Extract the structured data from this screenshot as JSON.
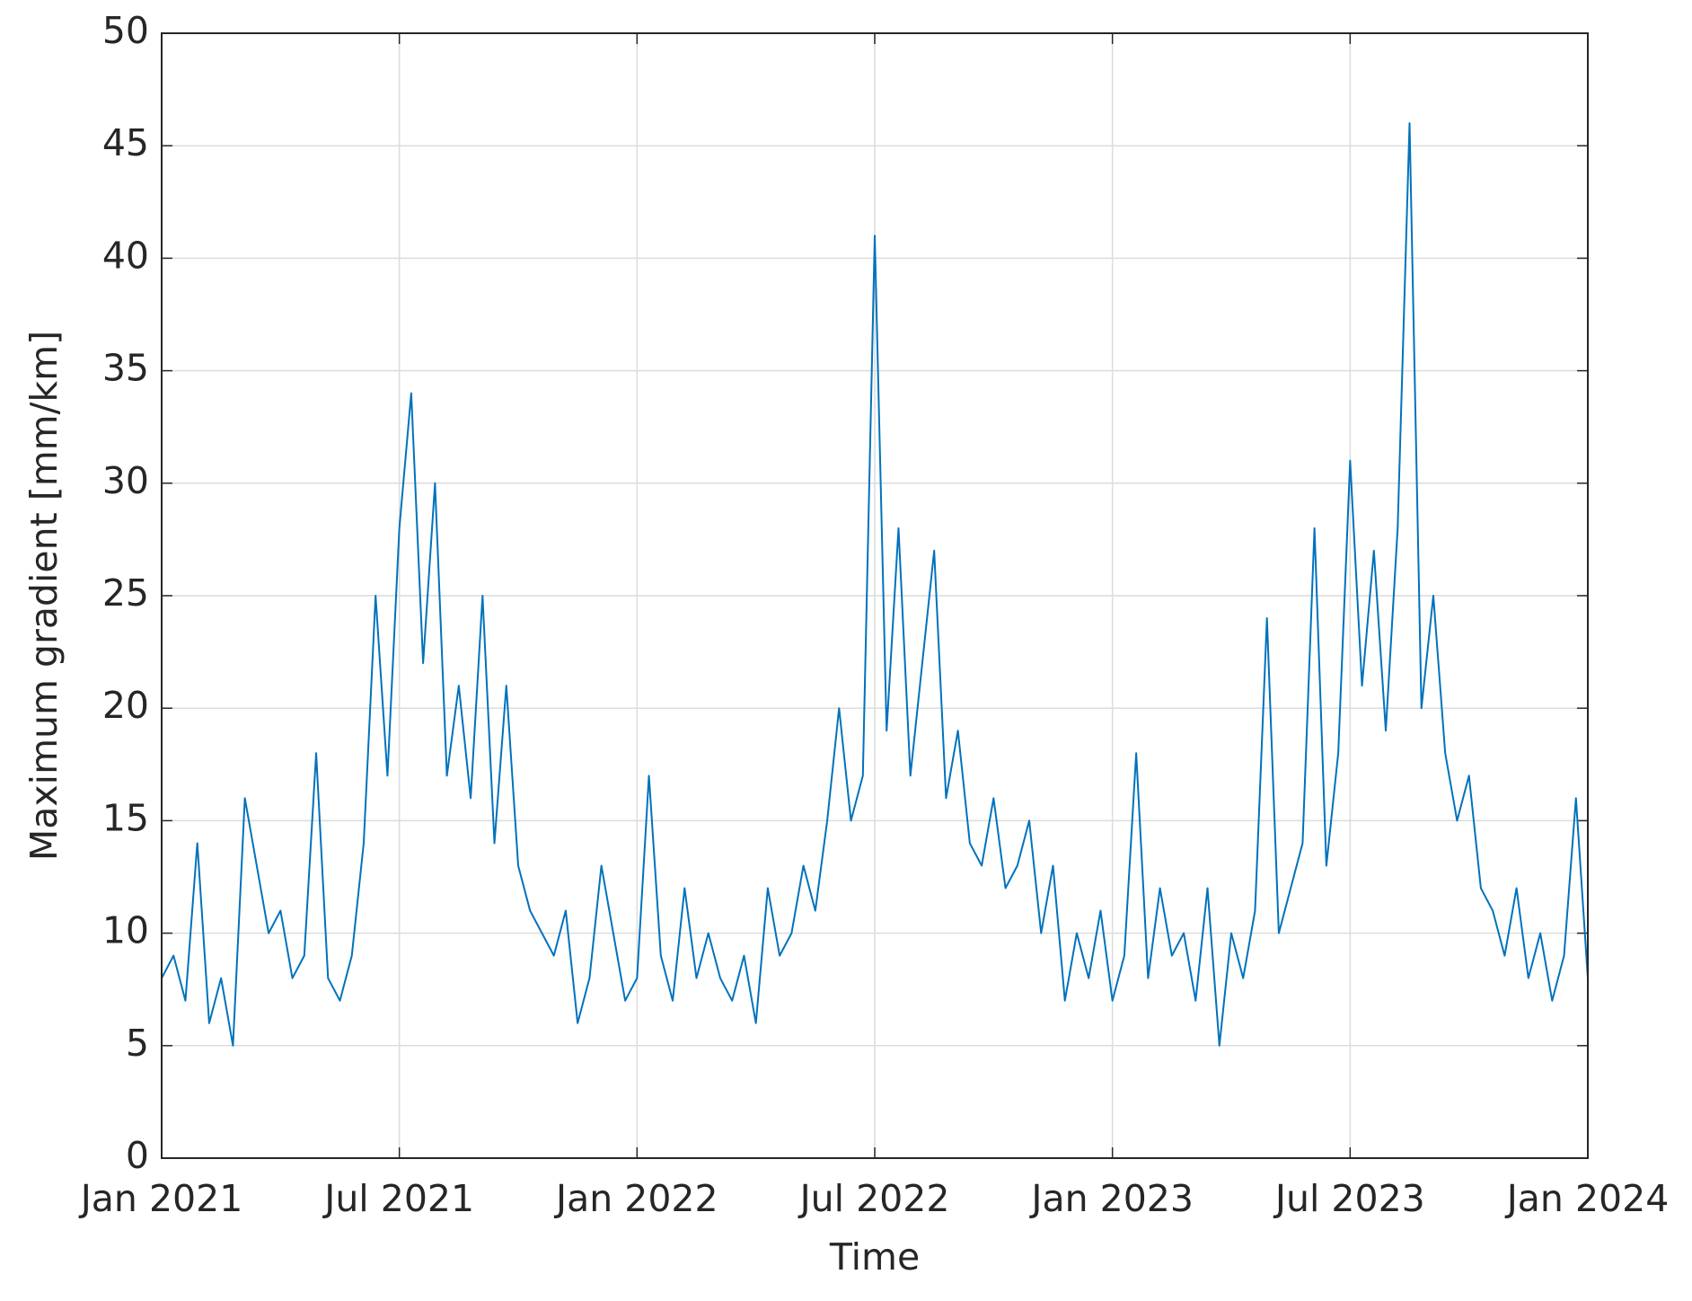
{
  "chart_data": {
    "type": "line",
    "xlabel": "Time",
    "ylabel": "Maximum gradient [mm/km]",
    "color": "#0072bd",
    "grid": true,
    "xlim": [
      2021.0,
      2024.0
    ],
    "xticks": [
      {
        "value": 2021.0,
        "label": "Jan 2021"
      },
      {
        "value": 2021.5,
        "label": "Jul 2021"
      },
      {
        "value": 2022.0,
        "label": "Jan 2022"
      },
      {
        "value": 2022.5,
        "label": "Jul 2022"
      },
      {
        "value": 2023.0,
        "label": "Jan 2023"
      },
      {
        "value": 2023.5,
        "label": "Jul 2023"
      },
      {
        "value": 2024.0,
        "label": "Jan 2024"
      }
    ],
    "ylim": [
      0,
      50
    ],
    "yticks": [
      0,
      5,
      10,
      15,
      20,
      25,
      30,
      35,
      40,
      45,
      50
    ],
    "x": [
      2021.0,
      2021.025,
      2021.05,
      2021.075,
      2021.1,
      2021.125,
      2021.15,
      2021.175,
      2021.2,
      2021.225,
      2021.25,
      2021.275,
      2021.3,
      2021.325,
      2021.35,
      2021.375,
      2021.4,
      2021.425,
      2021.45,
      2021.475,
      2021.5,
      2021.525,
      2021.55,
      2021.575,
      2021.6,
      2021.625,
      2021.65,
      2021.675,
      2021.7,
      2021.725,
      2021.75,
      2021.775,
      2021.8,
      2021.825,
      2021.85,
      2021.875,
      2021.9,
      2021.925,
      2021.95,
      2021.975,
      2022.0,
      2022.025,
      2022.05,
      2022.075,
      2022.1,
      2022.125,
      2022.15,
      2022.175,
      2022.2,
      2022.225,
      2022.25,
      2022.275,
      2022.3,
      2022.325,
      2022.35,
      2022.375,
      2022.4,
      2022.425,
      2022.45,
      2022.475,
      2022.5,
      2022.525,
      2022.55,
      2022.575,
      2022.6,
      2022.625,
      2022.65,
      2022.675,
      2022.7,
      2022.725,
      2022.75,
      2022.775,
      2022.8,
      2022.825,
      2022.85,
      2022.875,
      2022.9,
      2022.925,
      2022.95,
      2022.975,
      2023.0,
      2023.025,
      2023.05,
      2023.075,
      2023.1,
      2023.125,
      2023.15,
      2023.175,
      2023.2,
      2023.225,
      2023.25,
      2023.275,
      2023.3,
      2023.325,
      2023.35,
      2023.375,
      2023.4,
      2023.425,
      2023.45,
      2023.475,
      2023.5,
      2023.525,
      2023.55,
      2023.575,
      2023.6,
      2023.625,
      2023.65,
      2023.675,
      2023.7,
      2023.725,
      2023.75,
      2023.775,
      2023.8,
      2023.825,
      2023.85,
      2023.875,
      2023.9,
      2023.925,
      2023.95,
      2023.975,
      2024.0
    ],
    "values": [
      8,
      9,
      7,
      14,
      6,
      8,
      5,
      16,
      13,
      10,
      11,
      8,
      9,
      18,
      8,
      7,
      9,
      14,
      25,
      17,
      28,
      34,
      22,
      30,
      17,
      21,
      16,
      25,
      14,
      21,
      13,
      11,
      10,
      9,
      11,
      6,
      8,
      13,
      10,
      7,
      8,
      17,
      9,
      7,
      12,
      8,
      10,
      8,
      7,
      9,
      6,
      12,
      9,
      10,
      13,
      11,
      15,
      20,
      15,
      17,
      41,
      19,
      28,
      17,
      22,
      27,
      16,
      19,
      14,
      13,
      16,
      12,
      13,
      15,
      10,
      13,
      7,
      10,
      8,
      11,
      7,
      9,
      18,
      8,
      12,
      9,
      10,
      7,
      12,
      5,
      10,
      8,
      11,
      24,
      10,
      12,
      14,
      28,
      13,
      18,
      31,
      21,
      27,
      19,
      28,
      46,
      20,
      25,
      18,
      15,
      17,
      12,
      11,
      9,
      12,
      8,
      10,
      7,
      9,
      16,
      8
    ]
  }
}
